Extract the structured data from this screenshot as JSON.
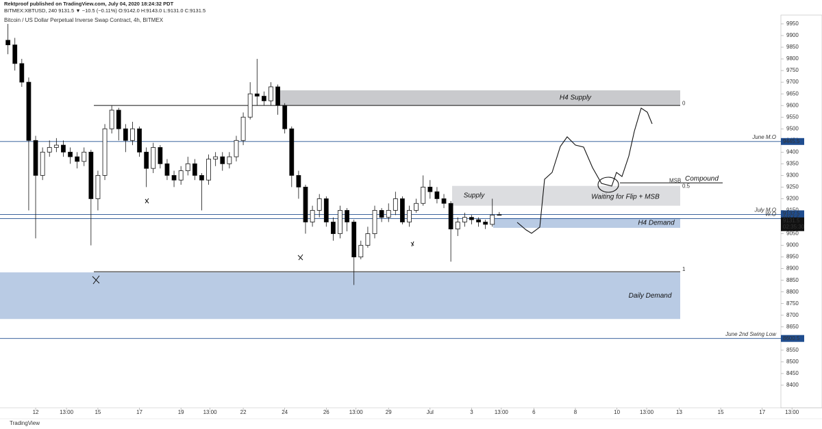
{
  "chart_data": {
    "type": "candlestick",
    "publisher_line": "Rektproof published on TradingView.com, July 04, 2020 18:24:32 PDT",
    "symbol_line": "BITMEX:XBTUSD, 240 9131.5 ▼ −10.5 (−0.11%) O:9142.0 H:9143.0 L:9131.0 C:9131.5",
    "title": "Bitcoin / US Dollar Perpetual Inverse Swap Contract, 4h, BITMEX",
    "brand": "TradingView",
    "up_color": "#ffffff",
    "down_color": "#000000",
    "x": [
      0,
      1,
      2,
      3,
      4,
      5,
      6,
      7,
      8,
      9,
      10,
      11,
      12,
      13,
      14,
      15,
      16,
      17,
      18,
      19,
      20,
      21,
      22,
      23,
      24,
      25,
      26,
      27,
      28,
      29,
      30,
      31,
      32,
      33,
      34,
      35,
      36,
      37,
      38,
      39,
      40,
      41,
      42,
      43,
      44,
      45,
      46,
      47,
      48,
      49,
      50,
      51,
      52,
      53,
      54,
      55,
      56,
      57,
      58,
      59,
      60,
      61,
      62,
      63,
      64,
      65,
      66,
      67,
      68,
      69,
      70,
      71
    ],
    "open": [
      9880,
      9860,
      9780,
      9700,
      9450,
      9300,
      9400,
      9420,
      9430,
      9400,
      9380,
      9360,
      9400,
      9200,
      9300,
      9500,
      9580,
      9500,
      9450,
      9500,
      9400,
      9330,
      9420,
      9350,
      9300,
      9280,
      9320,
      9350,
      9300,
      9280,
      9370,
      9380,
      9350,
      9380,
      9450,
      9550,
      9650,
      9640,
      9620,
      9680,
      9600,
      9500,
      9300,
      9250,
      9100,
      9150,
      9200,
      9100,
      9050,
      9150,
      9100,
      8950,
      9000,
      9050,
      9150,
      9120,
      9150,
      9200,
      9100,
      9150,
      9180,
      9250,
      9230,
      9200,
      9180,
      9070,
      9100,
      9120,
      9110,
      9100,
      9090,
      9130
    ],
    "high": [
      9950,
      9890,
      9800,
      9720,
      9470,
      9420,
      9450,
      9460,
      9450,
      9420,
      9400,
      9420,
      9410,
      9320,
      9520,
      9600,
      9590,
      9520,
      9530,
      9510,
      9420,
      9440,
      9430,
      9370,
      9320,
      9340,
      9380,
      9370,
      9310,
      9390,
      9400,
      9400,
      9400,
      9470,
      9570,
      9700,
      9800,
      9660,
      9700,
      9690,
      9610,
      9510,
      9320,
      9260,
      9170,
      9220,
      9210,
      9120,
      9170,
      9160,
      9110,
      9020,
      9080,
      9170,
      9160,
      9180,
      9230,
      9210,
      9170,
      9200,
      9300,
      9280,
      9250,
      9220,
      9190,
      9120,
      9140,
      9130,
      9120,
      9110,
      9200,
      9143
    ],
    "low": [
      9820,
      9750,
      9680,
      9150,
      9030,
      9280,
      9380,
      9400,
      9380,
      9350,
      9330,
      9340,
      9000,
      9150,
      9280,
      9480,
      9450,
      9400,
      9430,
      9380,
      9250,
      9310,
      9330,
      9280,
      9250,
      9260,
      9300,
      9280,
      9150,
      9260,
      9340,
      9320,
      9330,
      9360,
      9430,
      9540,
      9600,
      9600,
      9600,
      9560,
      9480,
      9250,
      9200,
      9050,
      9080,
      9120,
      9080,
      9020,
      9030,
      9060,
      8830,
      8940,
      8990,
      9030,
      9100,
      9100,
      9130,
      9090,
      9080,
      9140,
      9170,
      9200,
      9180,
      9160,
      8930,
      9040,
      9080,
      9090,
      9080,
      9070,
      9080,
      9131
    ],
    "close": [
      9860,
      9780,
      9700,
      9450,
      9300,
      9400,
      9420,
      9430,
      9400,
      9380,
      9360,
      9400,
      9200,
      9300,
      9500,
      9580,
      9500,
      9450,
      9500,
      9400,
      9330,
      9420,
      9350,
      9300,
      9280,
      9320,
      9350,
      9300,
      9280,
      9370,
      9380,
      9350,
      9380,
      9450,
      9550,
      9650,
      9640,
      9620,
      9680,
      9600,
      9500,
      9300,
      9250,
      9100,
      9150,
      9200,
      9100,
      9050,
      9150,
      9100,
      8950,
      9000,
      9050,
      9150,
      9120,
      9150,
      9200,
      9100,
      9150,
      9180,
      9250,
      9230,
      9200,
      9180,
      9070,
      9100,
      9120,
      9110,
      9100,
      9090,
      9130,
      9131.5
    ],
    "xlim": [
      -1.15,
      111.7
    ],
    "xticks": [
      {
        "value": 4,
        "label": "12"
      },
      {
        "value": 8.46,
        "label": "13:00"
      },
      {
        "value": 13,
        "label": "15"
      },
      {
        "value": 19,
        "label": "17"
      },
      {
        "value": 25,
        "label": "19"
      },
      {
        "value": 29.2,
        "label": "13:00"
      },
      {
        "value": 34,
        "label": "22"
      },
      {
        "value": 40,
        "label": "24"
      },
      {
        "value": 46,
        "label": "26"
      },
      {
        "value": 50.3,
        "label": "13:00"
      },
      {
        "value": 55,
        "label": "29"
      },
      {
        "value": 61,
        "label": "Jul"
      },
      {
        "value": 67,
        "label": "3"
      },
      {
        "value": 71.3,
        "label": "13:00"
      },
      {
        "value": 76,
        "label": "6"
      },
      {
        "value": 82,
        "label": "8"
      },
      {
        "value": 88,
        "label": "10"
      },
      {
        "value": 92.3,
        "label": "13:00"
      },
      {
        "value": 97,
        "label": "13"
      },
      {
        "value": 103,
        "label": "15"
      },
      {
        "value": 109,
        "label": "17"
      },
      {
        "value": 113.3,
        "label": "13:00"
      }
    ],
    "ylim": [
      8350,
      9988
    ],
    "yticks": [
      8400,
      8450,
      8500,
      8550,
      8600,
      8650,
      8700,
      8750,
      8800,
      8850,
      8900,
      8950,
      9000,
      9050,
      9100,
      9150,
      9200,
      9250,
      9300,
      9350,
      9400,
      9450,
      9500,
      9550,
      9600,
      9650,
      9700,
      9750,
      9800,
      9850,
      9900,
      9950
    ],
    "zones": [
      {
        "name": "H4 Supply",
        "range": [
          9600,
          9665
        ],
        "color": "#c9cacd"
      },
      {
        "name": "Supply",
        "range": [
          9170,
          9255
        ],
        "color": "#dcdde0"
      },
      {
        "name": "H4 Demand",
        "range": [
          9075,
          9117
        ],
        "color": "#b9cbe4"
      },
      {
        "name": "Daily Demand",
        "range": [
          8684,
          8884
        ],
        "color": "#b9cbe4"
      }
    ],
    "fib_levels": [
      {
        "value": 9600,
        "label": "0"
      },
      {
        "value": 8887,
        "label": "1"
      }
    ],
    "levels": [
      {
        "name": "June M.O",
        "value": 9445.5
      },
      {
        "name": "July M.O",
        "value": 9132.5
      },
      {
        "name": "W.O",
        "value": 9114.5
      },
      {
        "name": "June 2nd Swing Low",
        "value": 8600.5
      }
    ],
    "level_color": "#1f4d8f",
    "last_price": 9131.5,
    "countdown": "02:35:30",
    "compound": {
      "name": "Compound",
      "value": 9268
    },
    "notes": [
      "Waiting for Flip + MSB",
      "MSB",
      "0.5"
    ]
  }
}
